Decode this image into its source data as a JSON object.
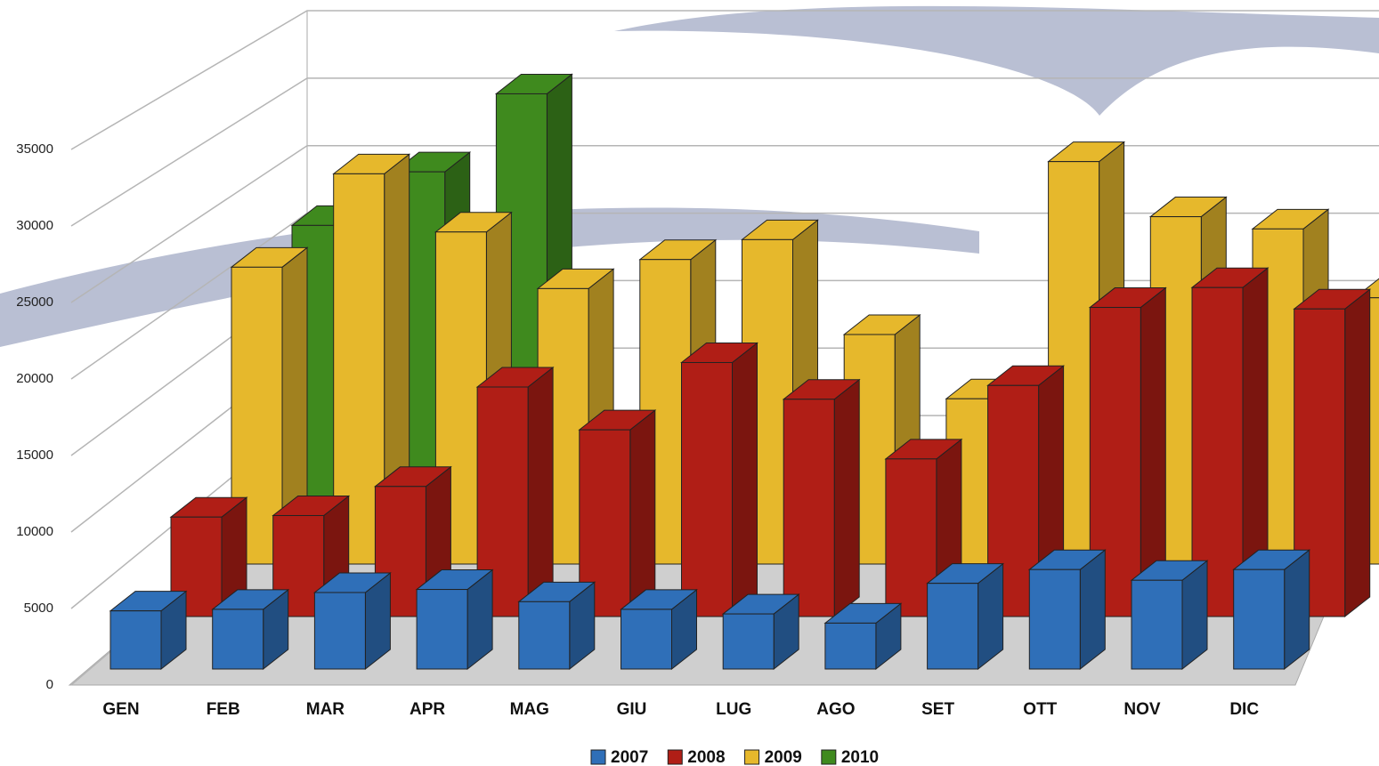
{
  "chart_data": {
    "type": "bar3d",
    "categories": [
      "GEN",
      "FEB",
      "MAR",
      "APR",
      "MAG",
      "GIU",
      "LUG",
      "AGO",
      "SET",
      "OTT",
      "NOV",
      "DIC"
    ],
    "series": [
      {
        "name": "2007",
        "color": "#2f6fb8",
        "values": [
          3800,
          3900,
          5000,
          5200,
          4400,
          3900,
          3600,
          3000,
          5600,
          6500,
          5800,
          6500
        ]
      },
      {
        "name": "2008",
        "color": "#b01e16",
        "values": [
          6500,
          6600,
          8500,
          15000,
          12200,
          16600,
          14200,
          10300,
          15100,
          20200,
          21500,
          20100
        ]
      },
      {
        "name": "2009",
        "color": "#e6b82c",
        "values": [
          19400,
          25500,
          21700,
          18000,
          19900,
          21200,
          15000,
          10800,
          26300,
          22700,
          21900,
          17400
        ]
      },
      {
        "name": "2010",
        "color": "#3f8a1e",
        "values": [
          18700,
          22200,
          27300,
          null,
          null,
          null,
          null,
          null,
          null,
          null,
          null,
          null
        ]
      }
    ],
    "ylim": [
      0,
      35000
    ],
    "yticks": [
      0,
      5000,
      10000,
      15000,
      20000,
      25000,
      30000,
      35000
    ],
    "grid": true
  }
}
